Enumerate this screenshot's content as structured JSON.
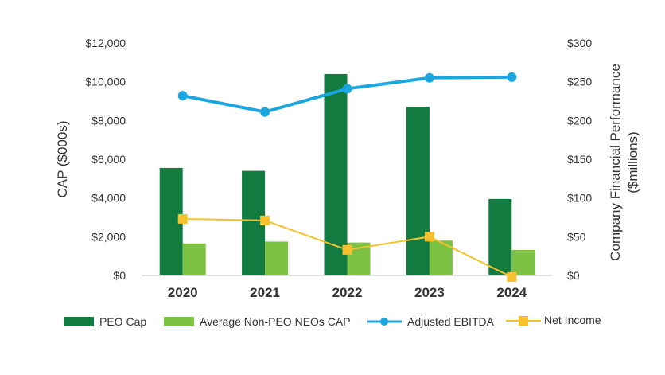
{
  "chart_data": {
    "type": "bar",
    "categories": [
      "2020",
      "2021",
      "2022",
      "2023",
      "2024"
    ],
    "bar_series": [
      {
        "name": "PEO Cap",
        "values": [
          5550,
          5400,
          10400,
          8700,
          3950
        ],
        "color": "#127b3f",
        "axis": "left"
      },
      {
        "name": "Average Non-PEO NEOs CAP",
        "values": [
          1650,
          1750,
          1700,
          1800,
          1320
        ],
        "color": "#7dc242",
        "axis": "left"
      }
    ],
    "line_series": [
      {
        "name": "Adjusted EBITDA",
        "values": [
          232,
          211,
          241,
          255,
          256
        ],
        "color": "#1ba6e0",
        "marker": "circle",
        "axis": "right"
      },
      {
        "name": "Net Income",
        "values": [
          73,
          71,
          33,
          50,
          -2
        ],
        "color": "#f5c22e",
        "marker": "square",
        "axis": "right"
      }
    ],
    "left_axis": {
      "label": "CAP ($000s)",
      "ylim": [
        0,
        12000
      ],
      "ticks": [
        "$0",
        "$2,000",
        "$4,000",
        "$6,000",
        "$8,000",
        "$10,000",
        "$12,000"
      ]
    },
    "right_axis": {
      "label_line1": "Company Financial Performance",
      "label_line2": "($millions)",
      "ylim": [
        0,
        300
      ],
      "ticks": [
        "$0",
        "$50",
        "$100",
        "$150",
        "$200",
        "$250",
        "$300"
      ]
    },
    "legend": {
      "position": "bottom",
      "items": [
        "PEO Cap",
        "Average Non-PEO NEOs CAP",
        "Adjusted EBITDA",
        "Net Income"
      ]
    },
    "grid": false
  }
}
